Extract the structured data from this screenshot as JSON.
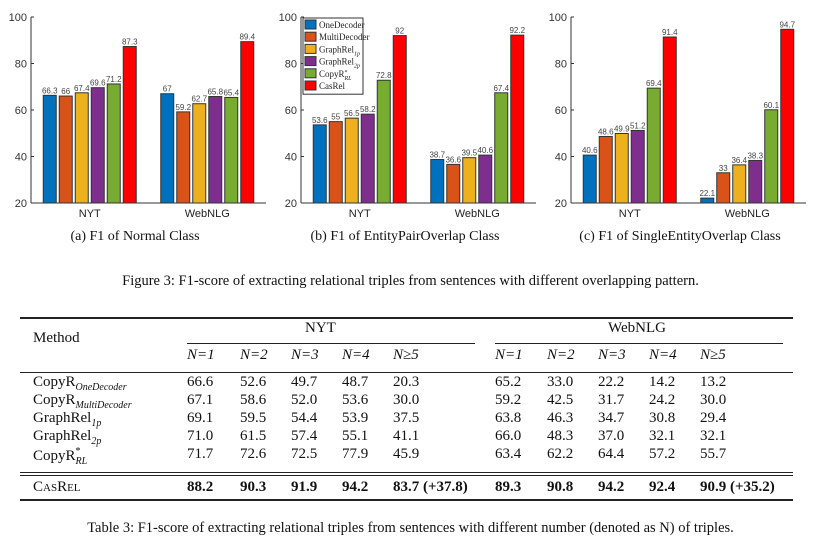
{
  "colors": {
    "OneDecoder": "#0072BD",
    "MultiDecoder": "#D95319",
    "GraphRel1p": "#EDB120",
    "GraphRel2p": "#7E2F8E",
    "CopyRRL": "#77AC30",
    "CasRel": "#FF0000"
  },
  "legend": [
    {
      "base": "OneDecoder",
      "sub": "",
      "sup": ""
    },
    {
      "base": "MultiDecoder",
      "sub": "",
      "sup": ""
    },
    {
      "base": "GraphRel",
      "sub": "1p",
      "sup": ""
    },
    {
      "base": "GraphRel",
      "sub": "2p",
      "sup": ""
    },
    {
      "base": "CopyR",
      "sub": "RL",
      "sup": "*"
    },
    {
      "base": "CasRel",
      "sub": "",
      "sup": ""
    }
  ],
  "chart_data": [
    {
      "type": "bar",
      "caption": "(a)  F1 of Normal Class",
      "categories": [
        "NYT",
        "WebNLG"
      ],
      "ylim": [
        20,
        100
      ],
      "yticks": [
        20,
        40,
        60,
        80,
        100
      ],
      "legend": "none",
      "series": [
        {
          "name": "OneDecoder",
          "values": [
            66.3,
            67
          ]
        },
        {
          "name": "MultiDecoder",
          "values": [
            66,
            59.2
          ]
        },
        {
          "name": "GraphRel1p",
          "values": [
            67.4,
            62.7
          ]
        },
        {
          "name": "GraphRel2p",
          "values": [
            69.6,
            65.8
          ]
        },
        {
          "name": "CopyRRL",
          "values": [
            71.2,
            65.4
          ]
        },
        {
          "name": "CasRel",
          "values": [
            87.3,
            89.4
          ]
        }
      ],
      "labels": [
        [
          "66.3",
          "67"
        ],
        [
          "66",
          "59.2"
        ],
        [
          "67.4",
          "62.7"
        ],
        [
          "69.6",
          "65.8"
        ],
        [
          "71.2",
          "65.4"
        ],
        [
          "87.3",
          "89.4"
        ]
      ]
    },
    {
      "type": "bar",
      "caption": "(b)  F1 of EntityPairOverlap Class",
      "categories": [
        "NYT",
        "WebNLG"
      ],
      "ylim": [
        20,
        100
      ],
      "yticks": [
        20,
        40,
        60,
        80,
        100
      ],
      "legend": "top-left",
      "series": [
        {
          "name": "OneDecoder",
          "values": [
            53.6,
            38.7
          ]
        },
        {
          "name": "MultiDecoder",
          "values": [
            55,
            36.6
          ]
        },
        {
          "name": "GraphRel1p",
          "values": [
            56.5,
            39.5
          ]
        },
        {
          "name": "GraphRel2p",
          "values": [
            58.2,
            40.6
          ]
        },
        {
          "name": "CopyRRL",
          "values": [
            72.8,
            67.4
          ]
        },
        {
          "name": "CasRel",
          "values": [
            92,
            92.2
          ]
        }
      ],
      "labels": [
        [
          "53.6",
          "38.7"
        ],
        [
          "55",
          "36.6"
        ],
        [
          "56.5",
          "39.5"
        ],
        [
          "58.2",
          "40.6"
        ],
        [
          "72.8",
          "67.4"
        ],
        [
          "92",
          "92.2"
        ]
      ]
    },
    {
      "type": "bar",
      "caption": "(c)  F1 of SingleEntityOverlap Class",
      "categories": [
        "NYT",
        "WebNLG"
      ],
      "ylim": [
        20,
        100
      ],
      "yticks": [
        20,
        40,
        60,
        80,
        100
      ],
      "legend": "none",
      "series": [
        {
          "name": "OneDecoder",
          "values": [
            40.6,
            22.1
          ]
        },
        {
          "name": "MultiDecoder",
          "values": [
            48.6,
            33
          ]
        },
        {
          "name": "GraphRel1p",
          "values": [
            49.9,
            36.4
          ]
        },
        {
          "name": "GraphRel2p",
          "values": [
            51.2,
            38.3
          ]
        },
        {
          "name": "CopyRRL",
          "values": [
            69.4,
            60.1
          ]
        },
        {
          "name": "CasRel",
          "values": [
            91.4,
            94.7
          ]
        }
      ],
      "labels": [
        [
          "40.6",
          "22.1"
        ],
        [
          "48.6",
          "33"
        ],
        [
          "49.9",
          "36.4"
        ],
        [
          "51.2",
          "38.3"
        ],
        [
          "69.4",
          "60.1"
        ],
        [
          "91.4",
          "94.7"
        ]
      ]
    }
  ],
  "figure_caption": "Figure 3: F1-score of extracting relational triples from sentences with different overlapping pattern.",
  "table": {
    "method_header": "Method",
    "group_headers": [
      "NYT",
      "WebNLG"
    ],
    "n_headers": [
      "N=1",
      "N=2",
      "N=3",
      "N=4",
      "N≥5",
      "N=1",
      "N=2",
      "N=3",
      "N=4",
      "N≥5"
    ],
    "rows": [
      {
        "base": "CopyR",
        "sup": "",
        "sub": "OneDecoder",
        "values": [
          "66.6",
          "52.6",
          "49.7",
          "48.7",
          "20.3",
          "65.2",
          "33.0",
          "22.2",
          "14.2",
          "13.2"
        ]
      },
      {
        "base": "CopyR",
        "sup": "",
        "sub": "MultiDecoder",
        "values": [
          "67.1",
          "58.6",
          "52.0",
          "53.6",
          "30.0",
          "59.2",
          "42.5",
          "31.7",
          "24.2",
          "30.0"
        ]
      },
      {
        "base": "GraphRel",
        "sup": "",
        "sub": "1p",
        "values": [
          "69.1",
          "59.5",
          "54.4",
          "53.9",
          "37.5",
          "63.8",
          "46.3",
          "34.7",
          "30.8",
          "29.4"
        ]
      },
      {
        "base": "GraphRel",
        "sup": "",
        "sub": "2p",
        "values": [
          "71.0",
          "61.5",
          "57.4",
          "55.1",
          "41.1",
          "66.0",
          "48.3",
          "37.0",
          "32.1",
          "32.1"
        ]
      },
      {
        "base": "CopyR",
        "sup": "*",
        "sub": "RL",
        "values": [
          "71.7",
          "72.6",
          "72.5",
          "77.9",
          "45.9",
          "63.4",
          "62.2",
          "64.4",
          "57.2",
          "55.7"
        ]
      }
    ],
    "best": {
      "base": "CasRel",
      "values": [
        "88.2",
        "90.3",
        "91.9",
        "94.2",
        "83.7 (+37.8)",
        "89.3",
        "90.8",
        "94.2",
        "92.4",
        "90.9 (+35.2)"
      ]
    },
    "caption": "Table 3: F1-score of extracting relational triples from sentences with different number (denoted as N) of triples."
  }
}
